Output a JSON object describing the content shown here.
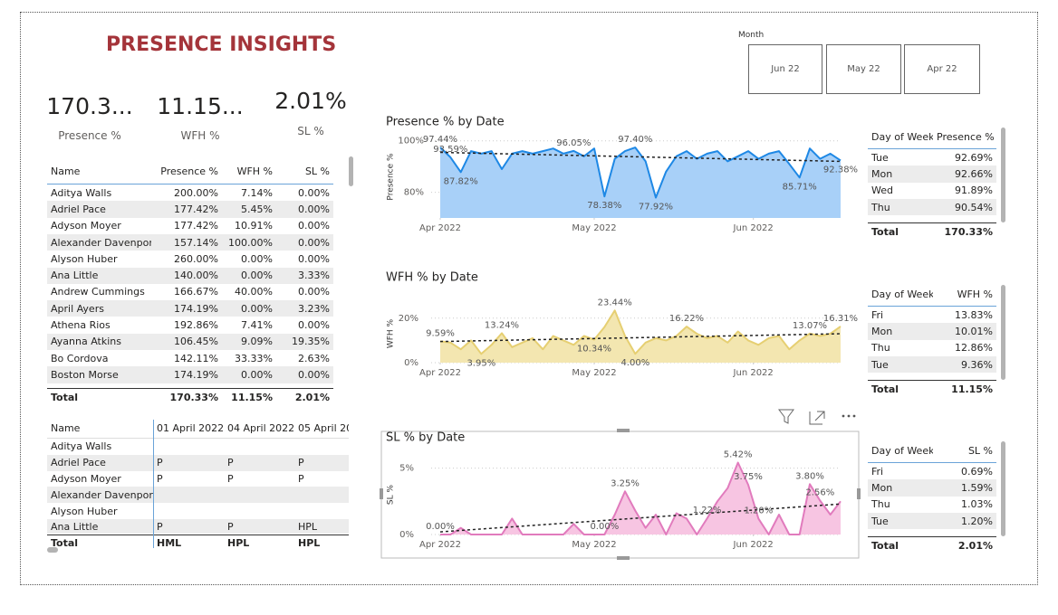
{
  "header": {
    "title": "PRESENCE INSIGHTS"
  },
  "slicer": {
    "label": "Month",
    "options": [
      "Jun 22",
      "May 22",
      "Apr 22"
    ]
  },
  "kpis": [
    {
      "value": "170.3...",
      "label": "Presence %"
    },
    {
      "value": "11.15...",
      "label": "WFH %"
    },
    {
      "value": "2.01%",
      "label": "SL %"
    }
  ],
  "names_table": {
    "columns": [
      "Name",
      "Presence %",
      "WFH %",
      "SL %"
    ],
    "rows": [
      [
        "Aditya Walls",
        "200.00%",
        "7.14%",
        "0.00%"
      ],
      [
        "Adriel Pace",
        "177.42%",
        "5.45%",
        "0.00%"
      ],
      [
        "Adyson Moyer",
        "177.42%",
        "10.91%",
        "0.00%"
      ],
      [
        "Alexander Davenport",
        "157.14%",
        "100.00%",
        "0.00%"
      ],
      [
        "Alyson Huber",
        "260.00%",
        "0.00%",
        "0.00%"
      ],
      [
        "Ana Little",
        "140.00%",
        "0.00%",
        "3.33%"
      ],
      [
        "Andrew Cummings",
        "166.67%",
        "40.00%",
        "0.00%"
      ],
      [
        "April Ayers",
        "174.19%",
        "0.00%",
        "3.23%"
      ],
      [
        "Athena Rios",
        "192.86%",
        "7.41%",
        "0.00%"
      ],
      [
        "Ayanna Atkins",
        "106.45%",
        "9.09%",
        "19.35%"
      ],
      [
        "Bo Cordova",
        "142.11%",
        "33.33%",
        "2.63%"
      ],
      [
        "Boston Morse",
        "174.19%",
        "0.00%",
        "0.00%"
      ]
    ],
    "total": [
      "Total",
      "170.33%",
      "11.15%",
      "2.01%"
    ]
  },
  "matrix": {
    "columns": [
      "Name",
      "01 April 2022",
      "04 April 2022",
      "05 April 20"
    ],
    "rows": [
      [
        "Aditya Walls",
        null,
        null,
        null
      ],
      [
        "Adriel Pace",
        "P",
        "P",
        "P"
      ],
      [
        "Adyson Moyer",
        "P",
        "P",
        "P"
      ],
      [
        "Alexander Davenport",
        null,
        null,
        null
      ],
      [
        "Alyson Huber",
        null,
        null,
        null
      ],
      [
        "Ana Little",
        "P",
        "P",
        "HPL"
      ]
    ],
    "total": [
      "Total",
      "HML",
      "HPL",
      "HPL"
    ]
  },
  "day_tables": [
    {
      "columns": [
        "Day of Week",
        "Presence %"
      ],
      "rows": [
        [
          "Tue",
          "92.69%"
        ],
        [
          "Mon",
          "92.66%"
        ],
        [
          "Wed",
          "91.89%"
        ],
        [
          "Thu",
          "90.54%"
        ]
      ],
      "total": [
        "Total",
        "170.33%"
      ]
    },
    {
      "columns": [
        "Day of Week",
        "WFH %"
      ],
      "rows": [
        [
          "Fri",
          "13.83%"
        ],
        [
          "Mon",
          "10.01%"
        ],
        [
          "Thu",
          "12.86%"
        ],
        [
          "Tue",
          "9.36%"
        ]
      ],
      "total": [
        "Total",
        "11.15%"
      ]
    },
    {
      "columns": [
        "Day of Week",
        "SL %"
      ],
      "rows": [
        [
          "Fri",
          "0.69%"
        ],
        [
          "Mon",
          "1.59%"
        ],
        [
          "Thu",
          "1.03%"
        ],
        [
          "Tue",
          "1.20%"
        ]
      ],
      "total": [
        "Total",
        "2.01%"
      ]
    }
  ],
  "chart_data": [
    {
      "type": "area",
      "title": "Presence % by Date",
      "ylabel": "Presence %",
      "color": "#1e88e5",
      "fill": "#a8d0f8",
      "grid": true,
      "x": [
        0,
        2,
        4,
        6,
        8,
        10,
        12,
        14,
        16,
        18,
        20,
        22,
        24,
        26,
        28,
        30,
        32,
        34,
        36,
        38,
        40,
        42,
        44,
        46,
        48,
        50,
        52,
        54,
        56,
        58,
        60,
        62,
        64,
        66,
        68,
        70,
        72,
        74,
        76,
        78
      ],
      "values": [
        97.44,
        93.59,
        87.82,
        96,
        95,
        96,
        89,
        95,
        96,
        95,
        96,
        97,
        95,
        96.05,
        94,
        97,
        78.38,
        93,
        96,
        97.4,
        92,
        77.92,
        88,
        94,
        96,
        93,
        95,
        96,
        92,
        94,
        96,
        93,
        95,
        96,
        91,
        85.71,
        97,
        93,
        95,
        92.38
      ],
      "value_labels": [
        "97.44%",
        "93.59%",
        "87.82%",
        null,
        null,
        null,
        null,
        null,
        null,
        null,
        null,
        null,
        null,
        "96.05%",
        null,
        null,
        "78.38%",
        null,
        null,
        "97.40%",
        null,
        "77.92%",
        null,
        null,
        null,
        null,
        null,
        null,
        null,
        null,
        null,
        null,
        null,
        null,
        null,
        "85.71%",
        null,
        null,
        null,
        "92.38%"
      ],
      "trend": [
        95.5,
        92.0
      ],
      "xlim": [
        0,
        78
      ],
      "xticks": [
        {
          "value": 0,
          "label": "Apr 2022"
        },
        {
          "value": 30,
          "label": "May 2022"
        },
        {
          "value": 61,
          "label": "Jun 2022"
        }
      ],
      "ylim": [
        70,
        102
      ],
      "yticks": [
        {
          "value": 80,
          "label": "80%"
        },
        {
          "value": 100,
          "label": "100%"
        }
      ]
    },
    {
      "type": "area",
      "title": "WFH % by Date",
      "ylabel": "WFH %",
      "color": "#e6cf72",
      "fill": "#f3e6b0",
      "grid": true,
      "x": [
        0,
        2,
        4,
        6,
        8,
        10,
        12,
        14,
        16,
        18,
        20,
        22,
        24,
        26,
        28,
        30,
        32,
        34,
        36,
        38,
        40,
        42,
        44,
        46,
        48,
        50,
        52,
        54,
        56,
        58,
        60,
        62,
        64,
        66,
        68,
        70,
        72,
        74,
        76,
        78
      ],
      "values": [
        9.59,
        9,
        6,
        10,
        3.95,
        8,
        13.24,
        7,
        9,
        11,
        6,
        12,
        10,
        8,
        12,
        10.34,
        16,
        23.44,
        12,
        4.0,
        9,
        11,
        10,
        12,
        16.22,
        13,
        11,
        12,
        9,
        14,
        10,
        8,
        11,
        12,
        6,
        10,
        13.07,
        12,
        13,
        16.31
      ],
      "value_labels": [
        "9.59%",
        null,
        null,
        null,
        "3.95%",
        null,
        "13.24%",
        null,
        null,
        null,
        null,
        null,
        null,
        null,
        null,
        "10.34%",
        null,
        "23.44%",
        null,
        "4.00%",
        null,
        null,
        null,
        null,
        "16.22%",
        null,
        null,
        null,
        null,
        null,
        null,
        null,
        null,
        null,
        null,
        null,
        "13.07%",
        null,
        null,
        "16.31%"
      ],
      "trend": [
        9.5,
        13.0
      ],
      "xlim": [
        0,
        78
      ],
      "xticks": [
        {
          "value": 0,
          "label": "Apr 2022"
        },
        {
          "value": 30,
          "label": "May 2022"
        },
        {
          "value": 61,
          "label": "Jun 2022"
        }
      ],
      "ylim": [
        0,
        26
      ],
      "yticks": [
        {
          "value": 0,
          "label": "0%"
        },
        {
          "value": 20,
          "label": "20%"
        }
      ]
    },
    {
      "type": "area",
      "title": "SL % by Date",
      "ylabel": "SL %",
      "color": "#e17bbd",
      "fill": "#f7c5e2",
      "grid": true,
      "x": [
        0,
        2,
        4,
        6,
        8,
        10,
        12,
        14,
        16,
        18,
        20,
        22,
        24,
        26,
        28,
        30,
        32,
        34,
        36,
        38,
        40,
        42,
        44,
        46,
        48,
        50,
        52,
        54,
        56,
        58,
        60,
        62,
        64,
        66,
        68,
        70,
        72,
        74,
        76,
        78
      ],
      "values": [
        0.0,
        0,
        0.5,
        0,
        0,
        0,
        0,
        1.2,
        0,
        0,
        0,
        0,
        0,
        0.8,
        0,
        0,
        0.0,
        1.5,
        3.25,
        1.8,
        0.5,
        1.5,
        0,
        1.6,
        1.2,
        0,
        1.22,
        2.5,
        3.5,
        5.42,
        3.75,
        1.2,
        0,
        1.5,
        0,
        0,
        3.8,
        2.56,
        1.5,
        2.5
      ],
      "value_labels": [
        "0.00%",
        null,
        null,
        null,
        null,
        null,
        null,
        null,
        null,
        null,
        null,
        null,
        null,
        null,
        null,
        null,
        "0.00%",
        null,
        "3.25%",
        null,
        null,
        null,
        null,
        null,
        null,
        null,
        "1.22%",
        null,
        null,
        "5.42%",
        "3.75%",
        "1.20%",
        null,
        null,
        null,
        null,
        "3.80%",
        "2.56%",
        null,
        null
      ],
      "trend": [
        0.2,
        2.3
      ],
      "xlim": [
        0,
        78
      ],
      "xticks": [
        {
          "value": 0,
          "label": "Apr 2022"
        },
        {
          "value": 30,
          "label": "May 2022"
        },
        {
          "value": 61,
          "label": "Jun 2022"
        }
      ],
      "ylim": [
        0,
        6
      ],
      "yticks": [
        {
          "value": 0,
          "label": "0%"
        },
        {
          "value": 5,
          "label": "5%"
        }
      ]
    }
  ]
}
